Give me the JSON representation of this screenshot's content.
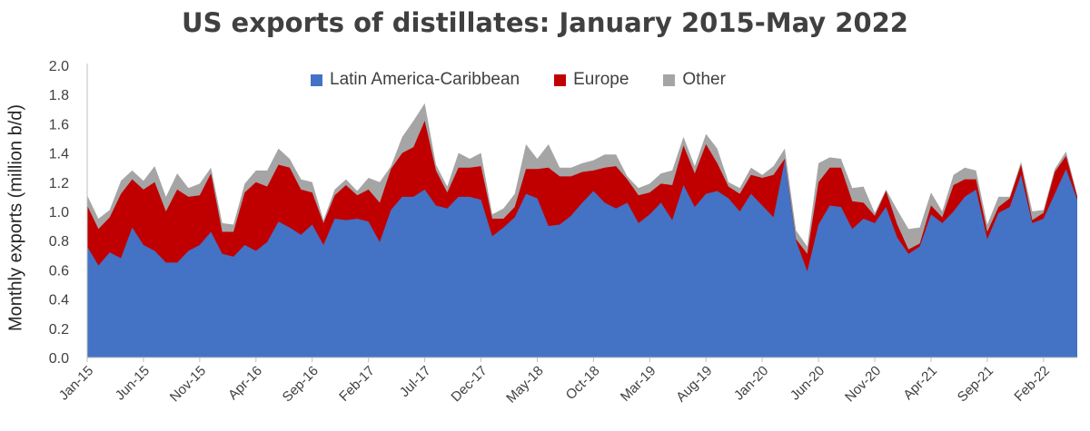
{
  "chart_data": {
    "type": "area",
    "stacked": true,
    "title": "US exports of distillates: January 2015-May 2022",
    "ylabel": "Monthly exports (million b/d)",
    "xlabel": "",
    "ylim": [
      0,
      2.0
    ],
    "y_ticks": [
      "0.0",
      "0.2",
      "0.4",
      "0.6",
      "0.8",
      "1.0",
      "1.2",
      "1.4",
      "1.6",
      "1.8",
      "2.0"
    ],
    "x_tick_labels": [
      "Jan-15",
      "Jun-15",
      "Nov-15",
      "Apr-16",
      "Sep-16",
      "Feb-17",
      "Jul-17",
      "Dec-17",
      "May-18",
      "Oct-18",
      "Mar-19",
      "Aug-19",
      "Jan-20",
      "Jun-20",
      "Nov-20",
      "Apr-21",
      "Sep-21",
      "Feb-22"
    ],
    "x_tick_step_months": 5,
    "grid": false,
    "legend_position": "top",
    "series": [
      {
        "name": "Latin America-Caribbean",
        "color": "#4472c4",
        "values": [
          0.76,
          0.63,
          0.72,
          0.68,
          0.89,
          0.77,
          0.73,
          0.65,
          0.65,
          0.73,
          0.77,
          0.86,
          0.71,
          0.69,
          0.77,
          0.73,
          0.79,
          0.93,
          0.89,
          0.84,
          0.91,
          0.77,
          0.95,
          0.94,
          0.95,
          0.93,
          0.79,
          1.01,
          1.1,
          1.1,
          1.15,
          1.04,
          1.02,
          1.1,
          1.1,
          1.08,
          0.83,
          0.89,
          0.96,
          1.12,
          1.09,
          0.9,
          0.91,
          0.97,
          1.06,
          1.14,
          1.06,
          1.02,
          1.06,
          0.92,
          0.98,
          1.06,
          0.94,
          1.18,
          1.03,
          1.12,
          1.14,
          1.09,
          1.0,
          1.12,
          1.04,
          0.96,
          1.35,
          0.8,
          0.59,
          0.91,
          1.04,
          1.03,
          0.88,
          0.95,
          0.92,
          1.03,
          0.82,
          0.71,
          0.76,
          0.98,
          0.92,
          1.0,
          1.1,
          1.15,
          0.81,
          0.99,
          1.03,
          1.25,
          0.92,
          0.95,
          1.12,
          1.29,
          1.08
        ]
      },
      {
        "name": "Europe",
        "color": "#c00000",
        "values": [
          0.28,
          0.25,
          0.24,
          0.44,
          0.33,
          0.38,
          0.47,
          0.35,
          0.5,
          0.37,
          0.34,
          0.4,
          0.15,
          0.17,
          0.36,
          0.47,
          0.38,
          0.39,
          0.41,
          0.31,
          0.22,
          0.15,
          0.16,
          0.24,
          0.16,
          0.22,
          0.27,
          0.28,
          0.3,
          0.34,
          0.47,
          0.24,
          0.11,
          0.2,
          0.2,
          0.23,
          0.12,
          0.06,
          0.07,
          0.17,
          0.2,
          0.4,
          0.33,
          0.27,
          0.21,
          0.14,
          0.24,
          0.29,
          0.16,
          0.19,
          0.15,
          0.13,
          0.24,
          0.27,
          0.23,
          0.34,
          0.19,
          0.08,
          0.12,
          0.13,
          0.19,
          0.29,
          0.01,
          0.01,
          0.12,
          0.29,
          0.26,
          0.27,
          0.19,
          0.11,
          0.05,
          0.11,
          0.09,
          0.03,
          0.02,
          0.06,
          0.04,
          0.18,
          0.12,
          0.07,
          0.05,
          0.04,
          0.06,
          0.07,
          0.02,
          0.04,
          0.15,
          0.09,
          0.02
        ]
      },
      {
        "name": "Other",
        "color": "#a5a5a5",
        "values": [
          0.07,
          0.07,
          0.05,
          0.09,
          0.06,
          0.06,
          0.11,
          0.1,
          0.11,
          0.06,
          0.08,
          0.04,
          0.06,
          0.05,
          0.06,
          0.08,
          0.11,
          0.11,
          0.06,
          0.07,
          0.07,
          0.02,
          0.04,
          0.04,
          0.03,
          0.08,
          0.14,
          0.02,
          0.11,
          0.18,
          0.12,
          0.04,
          0.04,
          0.1,
          0.06,
          0.09,
          0.03,
          0.07,
          0.09,
          0.17,
          0.07,
          0.16,
          0.06,
          0.06,
          0.06,
          0.07,
          0.09,
          0.08,
          0.02,
          0.05,
          0.06,
          0.07,
          0.1,
          0.06,
          0.05,
          0.07,
          0.1,
          0.03,
          0.04,
          0.05,
          0.02,
          0.06,
          0.07,
          0.06,
          0.05,
          0.13,
          0.07,
          0.06,
          0.09,
          0.11,
          0.02,
          0.01,
          0.1,
          0.14,
          0.11,
          0.09,
          0.04,
          0.07,
          0.08,
          0.06,
          0.05,
          0.07,
          0.01,
          0.02,
          0.06,
          0.02,
          0.02,
          0.03,
          0.01
        ]
      }
    ]
  }
}
